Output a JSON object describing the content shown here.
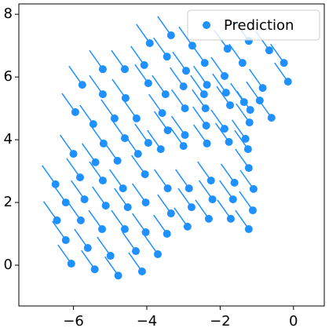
{
  "chart_data": {
    "type": "scatter",
    "x": [
      -3.92,
      -3.34,
      -2.76,
      -1.8,
      -1.22,
      -0.66,
      -0.26,
      -4.07,
      -3.45,
      -2.93,
      -2.42,
      -1.88,
      -1.39,
      -0.84,
      -0.15,
      -4.6,
      -5.2,
      -5.76,
      -4.58,
      -5.2,
      -3.96,
      -3.49,
      -3.0,
      -2.44,
      -2.36,
      -1.84,
      -1.35,
      -0.6,
      -5.95,
      -5.46,
      -4.88,
      -4.28,
      -3.58,
      -2.96,
      -2.4,
      -1.73,
      -1.18,
      -0.92,
      -5.18,
      -4.6,
      -3.96,
      -3.43,
      -2.96,
      -2.38,
      -1.88,
      -1.31,
      -1.2,
      -6.0,
      -5.4,
      -4.8,
      -4.24,
      -3.62,
      -3.0,
      -2.36,
      -1.76,
      -1.24,
      -5.82,
      -5.2,
      -4.65,
      -4.05,
      -3.43,
      -2.85,
      -2.25,
      -1.61,
      -1.22,
      -1.09,
      -6.49,
      -6.21,
      -5.7,
      -5.12,
      -4.52,
      -4.03,
      -3.34,
      -2.78,
      -2.21,
      -1.65,
      -1.11,
      -6.45,
      -5.8,
      -5.22,
      -4.6,
      -4.03,
      -3.45,
      -2.89,
      -2.31,
      -1.71,
      -1.22,
      -6.21,
      -5.61,
      -4.99,
      -4.3,
      -3.7,
      -6.06,
      -5.42,
      -4.78,
      -4.13
    ],
    "series": [
      {
        "name": "Prediction",
        "color": "#1e90ff",
        "values": [
          7.08,
          7.33,
          7.0,
          6.9,
          7.15,
          6.85,
          6.45,
          6.38,
          6.65,
          6.2,
          6.45,
          6.03,
          6.45,
          5.65,
          5.85,
          6.25,
          6.25,
          5.75,
          5.33,
          5.45,
          5.8,
          5.45,
          5.7,
          5.45,
          5.75,
          5.5,
          5.2,
          4.7,
          4.88,
          4.5,
          4.68,
          4.68,
          4.85,
          5.0,
          5.0,
          5.1,
          4.95,
          5.25,
          3.88,
          4.05,
          3.9,
          4.3,
          4.15,
          4.45,
          4.35,
          4.03,
          4.55,
          3.55,
          3.28,
          3.33,
          3.55,
          3.7,
          3.8,
          3.88,
          3.93,
          3.7,
          2.8,
          2.7,
          2.45,
          2.9,
          2.45,
          2.45,
          2.7,
          2.63,
          3.1,
          2.43,
          2.58,
          2.0,
          2.1,
          1.9,
          1.85,
          2.0,
          1.65,
          1.85,
          2.1,
          2.1,
          1.75,
          1.43,
          1.43,
          1.15,
          1.15,
          1.05,
          1.0,
          1.23,
          1.48,
          1.48,
          1.15,
          0.8,
          0.55,
          0.3,
          0.45,
          0.35,
          0.05,
          -0.13,
          -0.33,
          -0.2
        ]
      }
    ],
    "xlim": [
      -7.49,
      0.84
    ],
    "ylim": [
      -1.3,
      8.33
    ],
    "xticks": [
      {
        "value": -6,
        "label": "−6"
      },
      {
        "value": -4,
        "label": "−4"
      },
      {
        "value": -2,
        "label": "−2"
      },
      0
    ],
    "yticks": [
      0,
      2,
      4,
      6,
      8
    ],
    "legend": "upper right"
  }
}
